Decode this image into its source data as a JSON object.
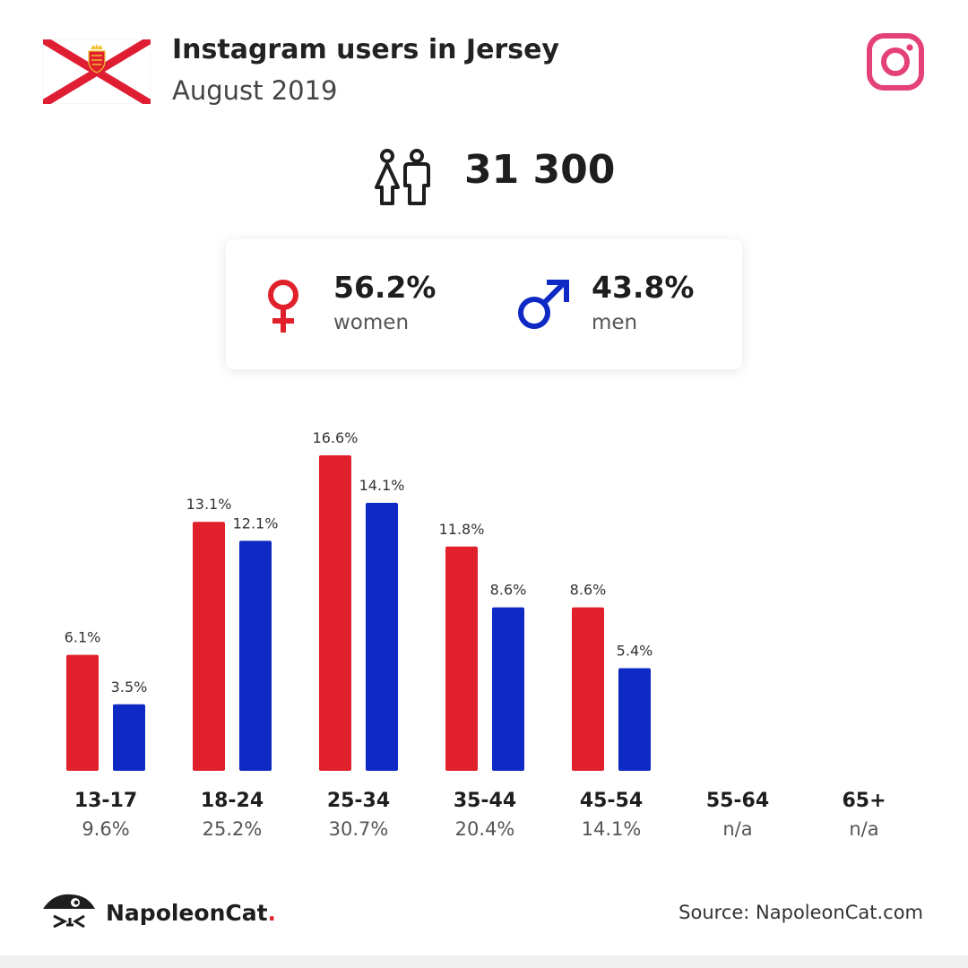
{
  "header": {
    "title": "Instagram users in Jersey",
    "subtitle": "August 2019",
    "flag_icon": "jersey-flag-icon",
    "platform_icon": "instagram-icon"
  },
  "total": {
    "value": "31 300",
    "icon": "users-icon"
  },
  "gender": {
    "women": {
      "pct": "56.2%",
      "label": "women",
      "color": "#e0202a",
      "icon": "female-symbol-icon"
    },
    "men": {
      "pct": "43.8%",
      "label": "men",
      "color": "#0f2ac4",
      "icon": "male-symbol-icon"
    }
  },
  "chart_data": {
    "type": "bar",
    "categories": [
      "13-17",
      "18-24",
      "25-34",
      "35-44",
      "45-54",
      "55-64",
      "65+"
    ],
    "totals": [
      "9.6%",
      "25.2%",
      "30.7%",
      "20.4%",
      "14.1%",
      "n/a",
      "n/a"
    ],
    "series": [
      {
        "values": [
          6.1,
          13.1,
          16.6,
          11.8,
          8.6,
          null,
          null
        ],
        "labels": [
          "6.1%",
          "13.1%",
          "16.6%",
          "11.8%",
          "8.6%",
          "",
          ""
        ],
        "color": "#e0202a"
      },
      {
        "values": [
          3.5,
          12.1,
          14.1,
          8.6,
          5.4,
          null,
          null
        ],
        "labels": [
          "3.5%",
          "12.1%",
          "14.1%",
          "8.6%",
          "5.4%",
          "",
          ""
        ],
        "color": "#0f2ac4"
      }
    ],
    "ylim": [
      0,
      16.6
    ],
    "grid": false,
    "legend": "none"
  },
  "footer": {
    "brand": "NapoleonCat",
    "brand_dot": ".",
    "logo_icon": "napoleoncat-logo-icon",
    "source": "Source: NapoleonCat.com"
  }
}
